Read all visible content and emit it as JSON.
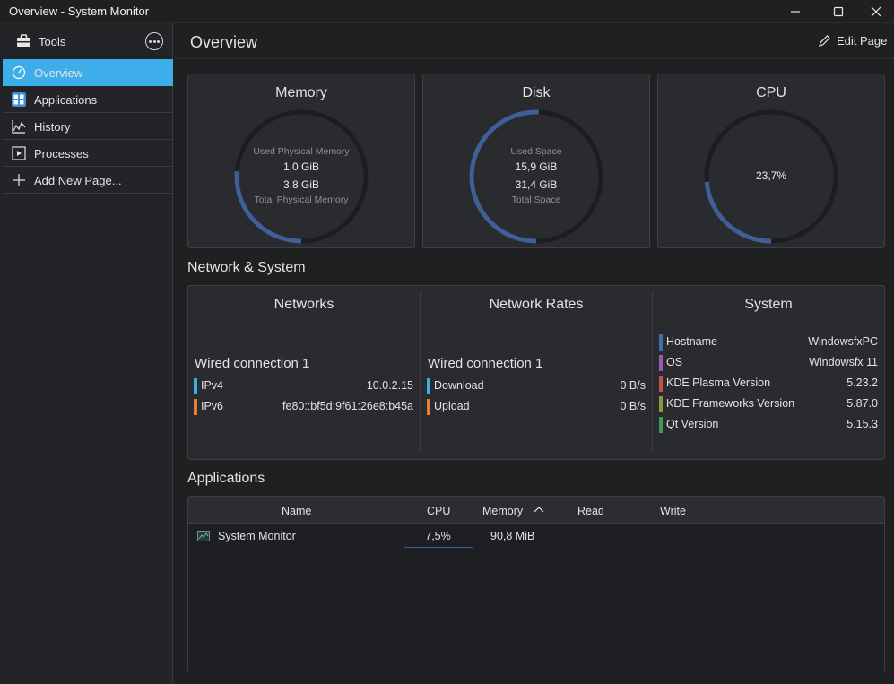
{
  "window": {
    "title": "Overview - System Monitor",
    "minimize_icon": "minimize-icon",
    "maximize_icon": "maximize-icon",
    "close_icon": "close-icon"
  },
  "sidebar": {
    "tools_label": "Tools",
    "items": [
      {
        "label": "Overview",
        "icon": "gauge-icon",
        "active": true
      },
      {
        "label": "Applications",
        "icon": "applications-icon"
      },
      {
        "label": "History",
        "icon": "history-chart-icon"
      },
      {
        "label": "Processes",
        "icon": "processes-icon"
      },
      {
        "label": "Add New Page...",
        "icon": "plus-icon"
      }
    ]
  },
  "header": {
    "title": "Overview",
    "edit_label": "Edit Page"
  },
  "cards": {
    "memory": {
      "title": "Memory",
      "used_label": "Used Physical Memory",
      "used": "1,0 GiB",
      "total": "3,8 GiB",
      "total_label": "Total Physical Memory",
      "fraction": 0.263
    },
    "disk": {
      "title": "Disk",
      "used_label": "Used Space",
      "used": "15,9 GiB",
      "total": "31,4 GiB",
      "total_label": "Total Space",
      "fraction": 0.506
    },
    "cpu": {
      "title": "CPU",
      "value": "23,7%",
      "fraction": 0.237
    }
  },
  "network_section": {
    "title": "Network & System",
    "networks": {
      "title": "Networks",
      "connection": "Wired connection 1",
      "rows": [
        {
          "key": "IPv4",
          "value": "10.0.2.15",
          "color": "#3daee9"
        },
        {
          "key": "IPv6",
          "value": "fe80::bf5d:9f61:26e8:b45a",
          "color": "#e97b3d"
        }
      ]
    },
    "rates": {
      "title": "Network Rates",
      "connection": "Wired connection 1",
      "rows": [
        {
          "key": "Download",
          "value": "0 B/s",
          "color": "#3daee9"
        },
        {
          "key": "Upload",
          "value": "0 B/s",
          "color": "#e97b3d"
        }
      ]
    },
    "system": {
      "title": "System",
      "rows": [
        {
          "key": "Hostname",
          "value": "WindowsfxPC",
          "color": "#3f6fad"
        },
        {
          "key": "OS",
          "value": "Windowsfx 11",
          "color": "#9b59b6"
        },
        {
          "key": "KDE Plasma Version",
          "value": "5.23.2",
          "color": "#c0504d"
        },
        {
          "key": "KDE Frameworks Version",
          "value": "5.87.0",
          "color": "#8a9a3a"
        },
        {
          "key": "Qt Version",
          "value": "5.15.3",
          "color": "#3a9a5a"
        }
      ]
    }
  },
  "applications": {
    "title": "Applications",
    "columns": {
      "name": "Name",
      "cpu": "CPU",
      "memory": "Memory",
      "read": "Read",
      "write": "Write"
    },
    "sort_icon": "sort-ascending-icon",
    "rows": [
      {
        "name": "System Monitor",
        "icon": "system-monitor-icon",
        "cpu": "7,5%",
        "memory": "90,8 MiB",
        "read": "",
        "write": ""
      }
    ]
  },
  "colors": {
    "accent": "#3daee9",
    "gauge_fill": "#3e5f98",
    "gauge_track": "#1c1d1f"
  }
}
